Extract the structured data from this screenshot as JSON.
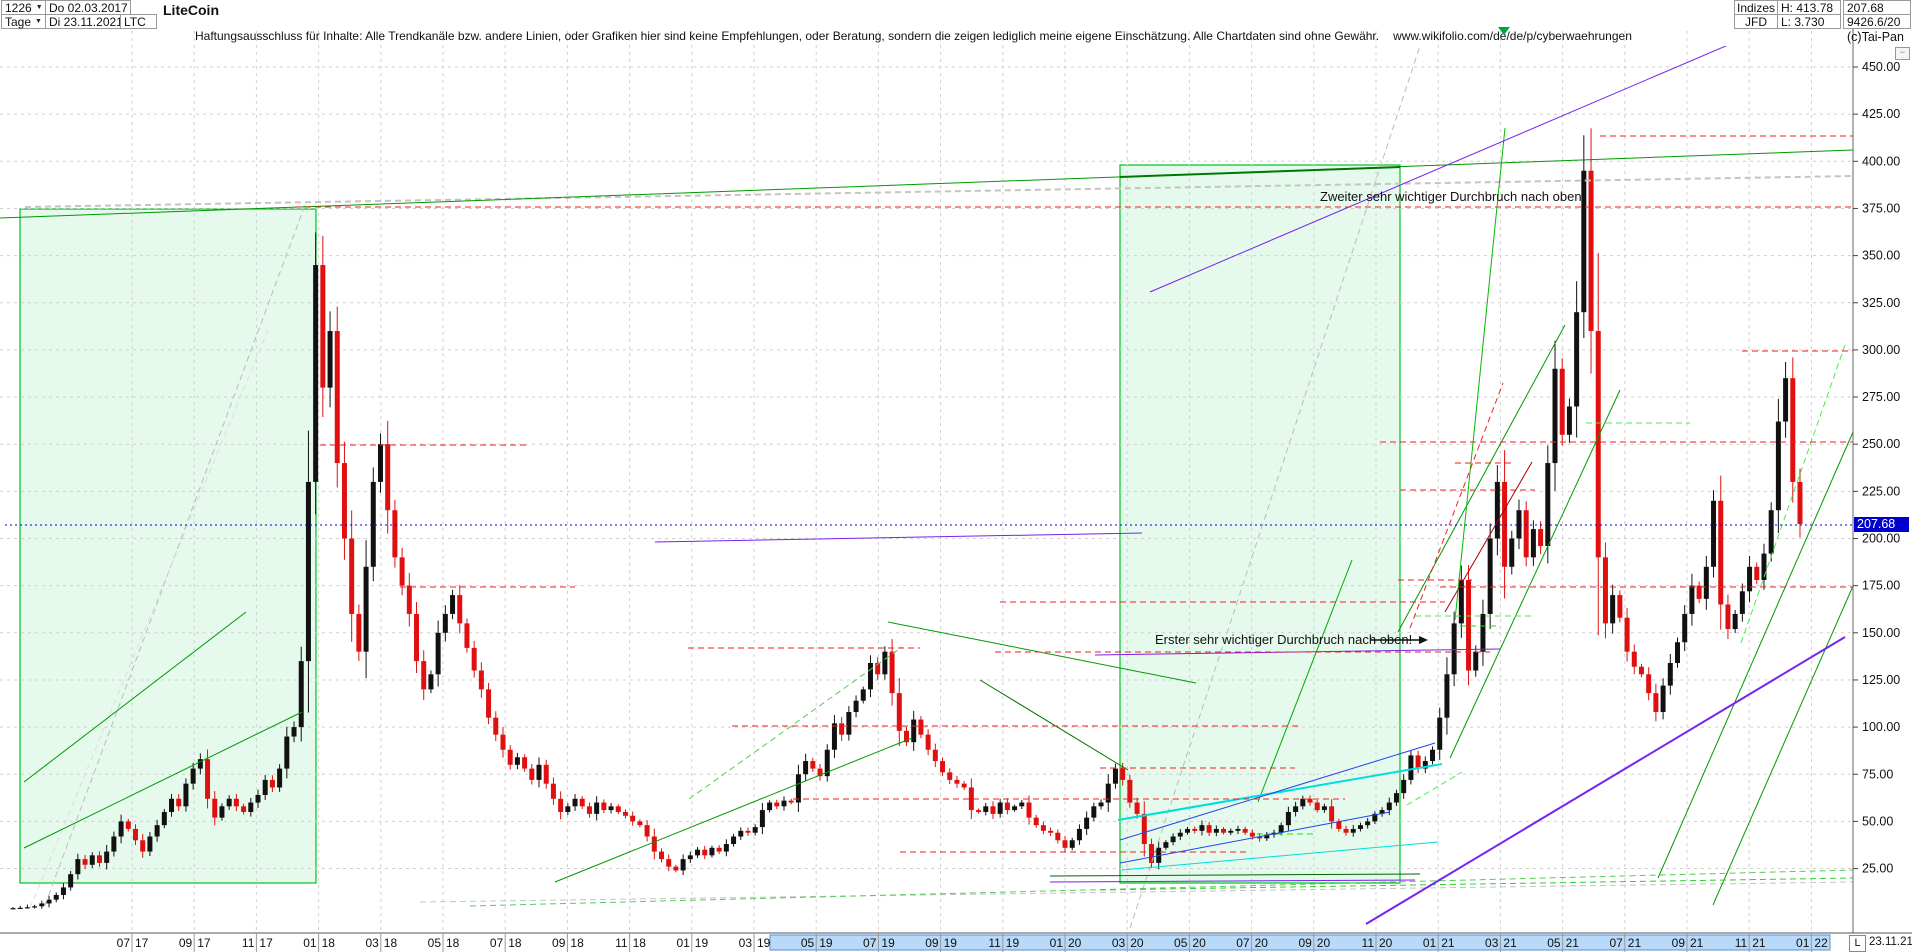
{
  "header": {
    "bars_count": "1226",
    "period_label": "Tage",
    "date_from": "Do 02.03.2017",
    "date_to": "Di 23.11.2021",
    "symbol": "LTC",
    "title": "LiteCoin",
    "indizes_label": "Indizes",
    "broker_label": "JFD",
    "high_label": "H: 413.78",
    "low_label": "L: 3.730",
    "last_price": "207.68",
    "volume": "9426.6/20",
    "copyright": "(c)Tai-Pan"
  },
  "disclaimer": "Haftungsausschluss für Inhalte: Alle Trendkanäle bzw. andere Linien, oder Grafiken hier sind keine Empfehlungen, oder Beratung, sondern die zeigen lediglich meine eigene Einschätzung. Alle Chartdaten sind ohne Gewähr.",
  "disclaimer_url": "www.wikifolio.com/de/de/p/cyberwaehrungen",
  "icons": {
    "dropdown": "▼",
    "collapse": "−"
  },
  "footer": {
    "low_marker": "L",
    "last_date": "23.11.21"
  },
  "chart_data": {
    "type": "candlestick",
    "instrument": "LiteCoin",
    "symbol": "LTC",
    "timeframe": "Tage",
    "period": {
      "from": "02.03.2017",
      "to": "23.11.2021",
      "bars": 1226
    },
    "current_price": 207.68,
    "period_high": 413.78,
    "period_low": 3.73,
    "ylim": [
      0,
      462
    ],
    "grid": true,
    "price_ticks": [
      450,
      425,
      400,
      375,
      350,
      325,
      300,
      275,
      250,
      225,
      200,
      175,
      150,
      125,
      100,
      75,
      50,
      25
    ],
    "x_labels": [
      "07.17",
      "09.17",
      "11.17",
      "01.18",
      "03.18",
      "05.18",
      "07.18",
      "09.18",
      "11.18",
      "01.19",
      "03.19",
      "05.19",
      "07.19",
      "09.19",
      "11.19",
      "01.20",
      "03.20",
      "05.20",
      "07.20",
      "09.20",
      "11.20",
      "01.21",
      "03.21",
      "05.21",
      "07.21",
      "09.21",
      "11.21",
      "01.22"
    ],
    "closes_weekly_approx": [
      4,
      4.2,
      4.5,
      5,
      6.5,
      8.5,
      11,
      15,
      22,
      30,
      27,
      32,
      28,
      34,
      42,
      50,
      46,
      40,
      34,
      42,
      48,
      55,
      62,
      58,
      70,
      78,
      83,
      62,
      52,
      58,
      62,
      58,
      55,
      60,
      64,
      72,
      68,
      78,
      95,
      100,
      135,
      230,
      345,
      280,
      310,
      240,
      200,
      160,
      140,
      185,
      230,
      250,
      215,
      190,
      175,
      160,
      135,
      120,
      128,
      150,
      160,
      170,
      155,
      142,
      130,
      120,
      105,
      96,
      88,
      80,
      84,
      78,
      72,
      80,
      70,
      62,
      55,
      58,
      62,
      58,
      54,
      60,
      56,
      58,
      55,
      53,
      50,
      48,
      42,
      34,
      30,
      26,
      24,
      30,
      32,
      35,
      32,
      36,
      34,
      38,
      42,
      45,
      44,
      47,
      56,
      60,
      58,
      61,
      60,
      75,
      82,
      78,
      74,
      88,
      102,
      96,
      108,
      114,
      120,
      134,
      128,
      140,
      118,
      98,
      92,
      104,
      96,
      88,
      82,
      76,
      72,
      70,
      68,
      56,
      55,
      58,
      54,
      60,
      56,
      58,
      60,
      52,
      48,
      45,
      44,
      40,
      36,
      40,
      46,
      52,
      58,
      60,
      70,
      78,
      72,
      60,
      54,
      38,
      28,
      36,
      39,
      42,
      44,
      46,
      45,
      48,
      44,
      46,
      44,
      45,
      46,
      44,
      42,
      41,
      43,
      44,
      48,
      55,
      58,
      62,
      60,
      56,
      58,
      50,
      46,
      44,
      46,
      48,
      50,
      54,
      56,
      60,
      65,
      72,
      85,
      78,
      82,
      88,
      105,
      128,
      155,
      178,
      130,
      140,
      160,
      200,
      230,
      185,
      200,
      215,
      190,
      205,
      196,
      240,
      290,
      255,
      270,
      320,
      395,
      310,
      190,
      155,
      170,
      158,
      140,
      132,
      128,
      118,
      108,
      122,
      134,
      145,
      160,
      175,
      168,
      185,
      220,
      165,
      152,
      160,
      172,
      185,
      178,
      192,
      215,
      262,
      285,
      230,
      207.68
    ],
    "colors": {
      "up_candle": "#111111",
      "down_candle": "#e01010",
      "box_fill": "rgba(0,210,80,0.10)",
      "box_border": "#00c020",
      "current_price_line": "#0000cc",
      "badge_bg": "#0000cc",
      "annotation_text": "#1f9bbf",
      "highlight_bar": "#b9d9f8",
      "grid": "#d0d0d0"
    },
    "shaded_boxes": [
      [
        20,
        209,
        316,
        883
      ],
      [
        1120,
        165,
        1400,
        883
      ]
    ],
    "trendlines": [
      [
        45,
        905,
        305,
        205,
        "#bbbbbb",
        "dash",
        1
      ],
      [
        30,
        908,
        268,
        330,
        "#dcdcdc",
        "dash",
        1
      ],
      [
        1130,
        928,
        1420,
        46,
        "#bbbbbb",
        "dash",
        1
      ],
      [
        25,
        207,
        1853,
        176,
        "#c4c4c4",
        "dash",
        2
      ],
      [
        420,
        902,
        1853,
        882,
        "#c4c4c4",
        "dash",
        1
      ],
      [
        0,
        218,
        1853,
        150,
        "#009900",
        "solid",
        1
      ],
      [
        24,
        848,
        302,
        712,
        "#009900",
        "solid",
        1
      ],
      [
        24,
        782,
        246,
        612,
        "#009900",
        "solid",
        1
      ],
      [
        1120,
        177,
        1400,
        167,
        "#007700",
        "solid",
        2
      ],
      [
        555,
        882,
        912,
        738,
        "#009900",
        "solid",
        1
      ],
      [
        888,
        622,
        1196,
        683,
        "#009900",
        "solid",
        1
      ],
      [
        980,
        680,
        1128,
        770,
        "#007700",
        "solid",
        1
      ],
      [
        1398,
        632,
        1565,
        325,
        "#009900",
        "solid",
        1
      ],
      [
        1450,
        758,
        1620,
        390,
        "#009900",
        "solid",
        1
      ],
      [
        1658,
        878,
        1853,
        432,
        "#009900",
        "solid",
        1
      ],
      [
        1713,
        905,
        1853,
        586,
        "#009900",
        "solid",
        1
      ],
      [
        1258,
        802,
        1352,
        560,
        "#00aa00",
        "solid",
        1
      ],
      [
        1455,
        620,
        1505,
        128,
        "#00bb00",
        "solid",
        1
      ],
      [
        1050,
        876,
        1420,
        874,
        "#006600",
        "solid",
        1
      ],
      [
        470,
        906,
        1853,
        870,
        "#55cc55",
        "dash",
        1
      ],
      [
        689,
        799,
        902,
        647,
        "#55cc55",
        "dash",
        1
      ],
      [
        1415,
        616,
        1533,
        616,
        "#44ee44",
        "dash",
        1
      ],
      [
        1460,
        626,
        1496,
        626,
        "#00ee00",
        "dash",
        1
      ],
      [
        1586,
        423,
        1690,
        423,
        "#44ee44",
        "dash",
        1
      ],
      [
        1741,
        643,
        1845,
        345,
        "#44ee44",
        "dash",
        1
      ],
      [
        1257,
        834,
        1313,
        834,
        "#00ee00",
        "dash",
        1
      ],
      [
        1407,
        805,
        1462,
        772,
        "#44ee44",
        "dash",
        1
      ],
      [
        1100,
        890,
        1853,
        878,
        "#33cc33",
        "dash",
        1
      ],
      [
        655,
        542,
        1142,
        533,
        "#7722ee",
        "solid",
        1
      ],
      [
        1095,
        655,
        1500,
        649,
        "#7722ee",
        "solid",
        1
      ],
      [
        1050,
        882,
        1415,
        880,
        "#7722ee",
        "solid",
        1
      ],
      [
        1150,
        292,
        1810,
        10,
        "#7722ee",
        "solid",
        1
      ],
      [
        1366,
        924,
        1845,
        637,
        "#7722ee",
        "solid",
        2
      ],
      [
        1118,
        820,
        1442,
        764,
        "#00dddd",
        "solid",
        2
      ],
      [
        1122,
        870,
        1438,
        842,
        "#00dddd",
        "solid",
        1
      ],
      [
        1120,
        840,
        1435,
        743,
        "#2244ee",
        "solid",
        1
      ],
      [
        1120,
        863,
        1390,
        812,
        "#2244ee",
        "solid",
        1
      ],
      [
        295,
        207,
        1853,
        207,
        "#ee2222",
        "dash",
        1
      ],
      [
        1600,
        136,
        1853,
        136,
        "#ee2222",
        "dash",
        1
      ],
      [
        320,
        445,
        530,
        445,
        "#ee2222",
        "dash",
        1
      ],
      [
        1380,
        442,
        1853,
        442,
        "#ee2222",
        "dash",
        1
      ],
      [
        1455,
        463,
        1515,
        463,
        "#ee2222",
        "dash",
        1
      ],
      [
        400,
        587,
        575,
        587,
        "#ee2222",
        "dash",
        1
      ],
      [
        1398,
        580,
        1472,
        580,
        "#ee2222",
        "dash",
        1
      ],
      [
        1440,
        587,
        1853,
        587,
        "#ee2222",
        "dash",
        1
      ],
      [
        688,
        648,
        920,
        648,
        "#ee2222",
        "dash",
        1
      ],
      [
        995,
        652,
        1490,
        652,
        "#ee2222",
        "dash",
        1
      ],
      [
        1000,
        602,
        1445,
        602,
        "#ee2222",
        "dash",
        1
      ],
      [
        732,
        726,
        1300,
        726,
        "#ee2222",
        "dash",
        1
      ],
      [
        1100,
        768,
        1295,
        768,
        "#ee2222",
        "dash",
        1
      ],
      [
        793,
        799,
        1345,
        799,
        "#ee2222",
        "dash",
        1
      ],
      [
        900,
        852,
        1248,
        852,
        "#ee2222",
        "dash",
        1
      ],
      [
        1400,
        490,
        1535,
        490,
        "#ee2222",
        "dash",
        1
      ],
      [
        1742,
        351,
        1853,
        351,
        "#ee2222",
        "dash",
        1
      ],
      [
        1410,
        628,
        1503,
        383,
        "#ee2222",
        "dash",
        1
      ],
      [
        1445,
        612,
        1532,
        462,
        "#aa0000",
        "solid",
        1
      ],
      [
        5,
        525,
        1853,
        525,
        "#0000cc",
        "dot",
        1
      ]
    ],
    "highlight_region": [
      770,
      1830
    ],
    "annotations": {
      "first": {
        "text": "Erster sehr wichtiger Durchbruch nach oben!"
      },
      "second": {
        "text": "Zweiter sehr wichtiger Durchbruch nach oben!"
      },
      "arrow": [
        1370,
        640,
        1428,
        640
      ]
    }
  }
}
